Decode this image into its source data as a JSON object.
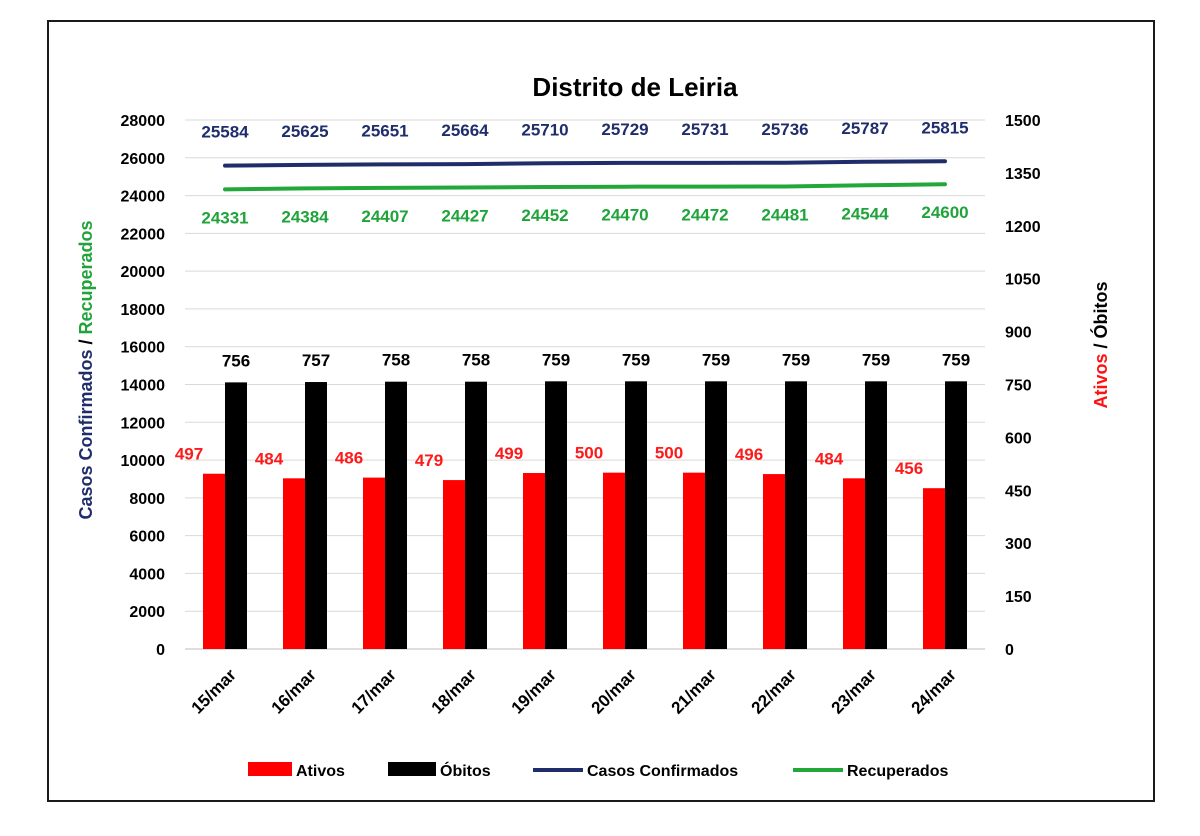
{
  "chart_data": {
    "type": "bar",
    "title": "Distrito de Leiria",
    "categories": [
      "15/mar",
      "16/mar",
      "17/mar",
      "18/mar",
      "19/mar",
      "20/mar",
      "21/mar",
      "22/mar",
      "23/mar",
      "24/mar"
    ],
    "left_axis": {
      "label_part1": "Casos Confirmados",
      "label_sep": " / ",
      "label_part2": "Recuperados",
      "label_part1_color": "#1f2d6b",
      "label_part2_color": "#1fa33a",
      "ylim": [
        0,
        28000
      ],
      "ticks": [
        "0",
        "2000",
        "4000",
        "6000",
        "8000",
        "10000",
        "12000",
        "14000",
        "16000",
        "18000",
        "20000",
        "22000",
        "24000",
        "26000",
        "28000"
      ]
    },
    "right_axis": {
      "label_part1": "Ativos",
      "label_sep": " / ",
      "label_part2": "Óbitos",
      "label_part1_color": "#ff1111",
      "label_part2_color": "#000000",
      "ylim": [
        0,
        1500
      ],
      "ticks": [
        "0",
        "150",
        "300",
        "450",
        "600",
        "750",
        "900",
        "1050",
        "1200",
        "1350",
        "1500"
      ]
    },
    "series": [
      {
        "name": "Ativos",
        "kind": "bar",
        "axis": "right",
        "color": "#ff0000",
        "label_color": "#ff1a1a",
        "values": [
          497,
          484,
          486,
          479,
          499,
          500,
          500,
          496,
          484,
          456
        ]
      },
      {
        "name": "Óbitos",
        "kind": "bar",
        "axis": "right",
        "color": "#000000",
        "label_color": "#000000",
        "values": [
          756,
          757,
          758,
          758,
          759,
          759,
          759,
          759,
          759,
          759
        ]
      },
      {
        "name": "Casos Confirmados",
        "kind": "line",
        "axis": "left",
        "color": "#1f2d6b",
        "label_color": "#1f2d6b",
        "values": [
          25584,
          25625,
          25651,
          25664,
          25710,
          25729,
          25731,
          25736,
          25787,
          25815
        ]
      },
      {
        "name": "Recuperados",
        "kind": "line",
        "axis": "left",
        "color": "#22a83a",
        "label_color": "#1fa33a",
        "values": [
          24331,
          24384,
          24407,
          24427,
          24452,
          24470,
          24472,
          24481,
          24544,
          24600
        ]
      }
    ],
    "grid": true,
    "legend": "bottom"
  }
}
